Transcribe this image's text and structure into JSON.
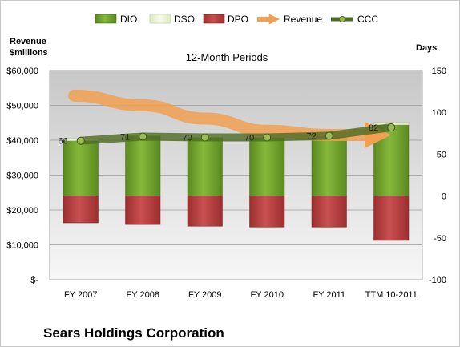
{
  "company_name": "Sears Holdings Corporation",
  "chart_data": {
    "type": "bar",
    "title": "12-Month Periods",
    "left_axis_title_line1": "Revenue",
    "left_axis_title_line2": "$millions",
    "right_axis_title": "Days",
    "categories": [
      "FY 2007",
      "FY 2008",
      "FY 2009",
      "FY 2010",
      "FY 2011",
      "TTM 10-2011"
    ],
    "left_axis": {
      "ylim": [
        0,
        60000
      ],
      "ticks": [
        0,
        10000,
        20000,
        30000,
        40000,
        50000,
        60000
      ],
      "tick_labels": [
        "$-",
        "$10,000",
        "$20,000",
        "$30,000",
        "$40,000",
        "$50,000",
        "$60,000"
      ]
    },
    "right_axis": {
      "ylim": [
        -100,
        150
      ],
      "ticks": [
        -100,
        -50,
        0,
        50,
        100,
        150
      ],
      "tick_labels": [
        "-100",
        "-50",
        "0",
        "50",
        "100",
        "150"
      ]
    },
    "grid": true,
    "legend_position": "top",
    "series": [
      {
        "name": "DIO",
        "type": "stacked-bar",
        "axis": "days",
        "color": "#6f9b2c",
        "values": [
          66,
          72,
          70,
          70,
          72,
          85
        ]
      },
      {
        "name": "DSO",
        "type": "stacked-bar",
        "axis": "days",
        "color": "#eaf3d0",
        "values": [
          3,
          3,
          3,
          3,
          3,
          3
        ]
      },
      {
        "name": "DPO",
        "type": "stacked-bar-negative",
        "axis": "days",
        "color": "#b23b3b",
        "values": [
          -32,
          -34,
          -36,
          -37,
          -37,
          -53
        ]
      },
      {
        "name": "Revenue",
        "type": "arrow-line",
        "axis": "revenue",
        "color": "#f0a050",
        "values": [
          52800,
          50000,
          46200,
          42700,
          41500,
          41500
        ]
      },
      {
        "name": "CCC",
        "type": "line",
        "axis": "days",
        "color": "#4e6a23",
        "values": [
          66,
          71,
          70,
          70,
          72,
          82
        ]
      }
    ],
    "data_labels": [
      "66",
      "71",
      "70",
      "70",
      "72",
      "82"
    ]
  }
}
